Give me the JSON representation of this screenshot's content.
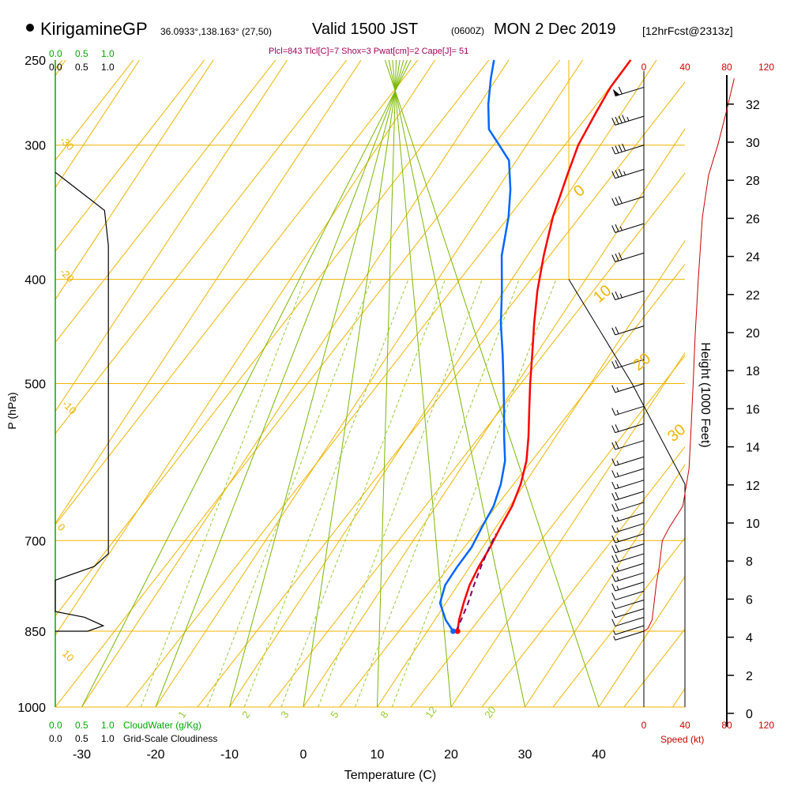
{
  "header": {
    "station": "KirigamineGP",
    "coords": "36.0933°,138.163° (27,50)",
    "valid_a": "Valid 1500 JST",
    "valid_z": "(0600Z)",
    "valid_b": "MON 2 Dec 2019",
    "forecast": "[12hrFcst@2313z]",
    "indices": "Plcl=843 Tlcl[C]=7 Shox=3 Pwat[cm]=2 Cape[J]= 51"
  },
  "chart_data": {
    "type": "line",
    "title": "",
    "xlabel": "Temperature (C)",
    "ylabel": "P (hPa)",
    "right_label": "Height (1000 Feet)",
    "xlim": [
      -35,
      45
    ],
    "x_ticks": [
      -30,
      -20,
      -10,
      0,
      10,
      20,
      30,
      40
    ],
    "pressure_levels": [
      250,
      300,
      400,
      500,
      700,
      850,
      1000
    ],
    "height_ticks": [
      0,
      2,
      4,
      6,
      8,
      10,
      12,
      14,
      16,
      18,
      20,
      22,
      24,
      26,
      28,
      30,
      32
    ],
    "top_scale_green": [
      "0.0",
      "0.5",
      "1.0"
    ],
    "top_scale_black": [
      "0.0",
      "0.5",
      "1.0"
    ],
    "bottom_scale_green": [
      "0.0",
      "0.5",
      "1.0"
    ],
    "bottom_scale_black": [
      "0.0",
      "0.5",
      "1.0"
    ],
    "cloudwater_label": "CloudWater (g/Kg)",
    "cloudiness_label": "Grid-Scale Cloudiness",
    "speed_ticks": [
      "0",
      "40",
      "80",
      "120"
    ],
    "speed_label": "Speed (kt)",
    "theta_labels": [
      "-30",
      "-20",
      "-10",
      "0",
      "10",
      "20",
      "30"
    ],
    "mixing_ratio_labels": [
      "1",
      "2",
      "3",
      "5",
      "8",
      "12",
      "20"
    ],
    "dry_adiabat_labels": [
      "10",
      "0",
      "-10",
      "-20",
      "-30"
    ],
    "colors": {
      "temperature": "#ff0000",
      "dewpoint": "#0066ff",
      "parcel": "#800060",
      "isotherm": "#f0b400",
      "moist_adiabat": "#7ab800",
      "mixing_ratio": "#99cc33",
      "cloudwater": "#00aa00",
      "speed": "#cc0000"
    },
    "series": [
      {
        "name": "temperature",
        "values": [
          [
            14.1,
            850
          ],
          [
            13.3,
            830
          ],
          [
            12.4,
            800
          ],
          [
            11.6,
            770
          ],
          [
            11.2,
            740
          ],
          [
            11.0,
            710
          ],
          [
            10.6,
            680
          ],
          [
            10.3,
            650
          ],
          [
            9.5,
            620
          ],
          [
            8.2,
            590
          ],
          [
            6.3,
            560
          ],
          [
            4.1,
            530
          ],
          [
            1.8,
            500
          ],
          [
            -0.5,
            470
          ],
          [
            -3.0,
            440
          ],
          [
            -5.5,
            410
          ],
          [
            -7.8,
            380
          ],
          [
            -10.0,
            350
          ],
          [
            -11.8,
            320
          ],
          [
            -13.0,
            300
          ],
          [
            -13.5,
            280
          ],
          [
            -13.8,
            265
          ],
          [
            -13.5,
            250
          ]
        ]
      },
      {
        "name": "dewpoint",
        "values": [
          [
            13.5,
            850
          ],
          [
            11.5,
            830
          ],
          [
            9.2,
            800
          ],
          [
            8.3,
            770
          ],
          [
            8.3,
            740
          ],
          [
            8.5,
            710
          ],
          [
            8.1,
            680
          ],
          [
            7.8,
            650
          ],
          [
            6.8,
            620
          ],
          [
            5.3,
            590
          ],
          [
            3.0,
            560
          ],
          [
            0.7,
            530
          ],
          [
            -1.8,
            500
          ],
          [
            -4.5,
            470
          ],
          [
            -7.5,
            440
          ],
          [
            -10.3,
            410
          ],
          [
            -13.5,
            380
          ],
          [
            -16.0,
            350
          ],
          [
            -18.2,
            330
          ],
          [
            -21.0,
            310
          ],
          [
            -23.7,
            300
          ],
          [
            -26.5,
            290
          ],
          [
            -28.8,
            275
          ],
          [
            -30.8,
            260
          ],
          [
            -32.0,
            250
          ]
        ]
      },
      {
        "name": "parcel",
        "values": [
          [
            13.9,
            850
          ],
          [
            13.5,
            825
          ],
          [
            13.0,
            800
          ],
          [
            12.2,
            770
          ],
          [
            11.5,
            740
          ],
          [
            10.9,
            710
          ],
          [
            10.6,
            690
          ]
        ]
      },
      {
        "name": "cloudiness",
        "values": [
          [
            0.0,
            318
          ],
          [
            0.76,
            345
          ],
          [
            0.82,
            372
          ],
          [
            0.82,
            720
          ],
          [
            0.6,
            740
          ],
          [
            0.0,
            762
          ],
          [
            0.0,
            815
          ],
          [
            0.45,
            825
          ],
          [
            0.74,
            840
          ],
          [
            0.5,
            850
          ],
          [
            0.0,
            850
          ]
        ]
      }
    ],
    "wind_barbs": [
      {
        "p": 265,
        "speed": 60
      },
      {
        "p": 282,
        "speed": 45
      },
      {
        "p": 300,
        "speed": 40
      },
      {
        "p": 316,
        "speed": 35
      },
      {
        "p": 335,
        "speed": 30
      },
      {
        "p": 355,
        "speed": 25
      },
      {
        "p": 378,
        "speed": 30
      },
      {
        "p": 410,
        "speed": 25
      },
      {
        "p": 442,
        "speed": 20
      },
      {
        "p": 475,
        "speed": 20
      },
      {
        "p": 500,
        "speed": 15
      },
      {
        "p": 525,
        "speed": 15
      },
      {
        "p": 545,
        "speed": 20
      },
      {
        "p": 565,
        "speed": 20
      },
      {
        "p": 585,
        "speed": 15
      },
      {
        "p": 600,
        "speed": 15
      },
      {
        "p": 615,
        "speed": 15
      },
      {
        "p": 630,
        "speed": 20
      },
      {
        "p": 645,
        "speed": 20
      },
      {
        "p": 660,
        "speed": 15
      },
      {
        "p": 675,
        "speed": 15
      },
      {
        "p": 690,
        "speed": 15
      },
      {
        "p": 705,
        "speed": 20
      },
      {
        "p": 720,
        "speed": 20
      },
      {
        "p": 735,
        "speed": 15
      },
      {
        "p": 750,
        "speed": 15
      },
      {
        "p": 765,
        "speed": 15
      },
      {
        "p": 780,
        "speed": 10
      },
      {
        "p": 795,
        "speed": 10
      },
      {
        "p": 810,
        "speed": 10
      },
      {
        "p": 825,
        "speed": 10
      },
      {
        "p": 840,
        "speed": 5
      },
      {
        "p": 850,
        "speed": 5
      }
    ],
    "wind_speed_profile": [
      [
        0,
        850
      ],
      [
        4,
        845
      ],
      [
        8,
        830
      ],
      [
        10,
        800
      ],
      [
        12,
        770
      ],
      [
        15,
        740
      ],
      [
        18,
        700
      ],
      [
        25,
        680
      ],
      [
        38,
        650
      ],
      [
        44,
        600
      ],
      [
        46,
        550
      ],
      [
        48,
        500
      ],
      [
        50,
        450
      ],
      [
        53,
        400
      ],
      [
        57,
        350
      ],
      [
        63,
        320
      ],
      [
        72,
        300
      ],
      [
        80,
        280
      ],
      [
        88,
        260
      ]
    ]
  }
}
